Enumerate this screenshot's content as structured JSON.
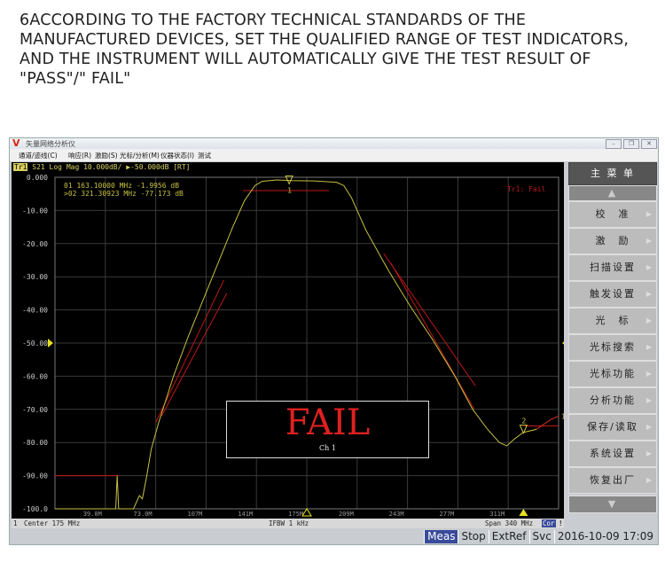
{
  "caption": "6ACCORDING TO THE FACTORY TECHNICAL STANDARDS OF THE MANUFACTURED DEVICES, SET THE QUALIFIED RANGE OF TEST INDICATORS, AND THE INSTRUMENT WILL AUTOMATICALLY GIVE THE TEST RESULT OF \"PASS\"/\" FAIL\"",
  "window": {
    "title": "矢量网络分析仪",
    "logo": "V"
  },
  "menu": [
    "通道/迹线(C)",
    "响应(R)",
    "激励(S)",
    "光标/分析(M)",
    "仪器状态(I)",
    "测试"
  ],
  "trace_header": {
    "tr": "Tr1",
    "text": "S21 Log Mag 10.000dB/ ▶-50.000dB [RT]"
  },
  "markers": [
    {
      "label": "01",
      "text": "163.10000 MHz -1.9956 dB",
      "freq": 163.1,
      "db": -1.9956
    },
    {
      "label": ">02",
      "text": "321.30923 MHz -77.173 dB",
      "freq": 321.30923,
      "db": -77.173
    }
  ],
  "limit_status": "Tr1: Fail",
  "y_ticks": [
    "0.000",
    "-10.00",
    "-20.00",
    "-30.00",
    "-40.00",
    "-50.00",
    "-60.00",
    "-70.00",
    "-80.00",
    "-90.00",
    "-100.0"
  ],
  "x_ticks": [
    "39.0M",
    "73.0M",
    "107M",
    "141M",
    "175M",
    "209M",
    "243M",
    "277M",
    "311M"
  ],
  "result": {
    "text": "FAIL",
    "channel": "Ch 1"
  },
  "status": {
    "channel": "1",
    "center": "Center 175 MHz",
    "ifbw": "IFBW 1 kHz",
    "span": "Span 340 MHz",
    "cor": "Cor",
    "warn": "!"
  },
  "bottom": [
    "Meas",
    "Stop",
    "ExtRef",
    "Svc",
    "2016-10-09 17:09"
  ],
  "side_menu": {
    "title": "主 菜 单",
    "items": [
      "校　准",
      "激　励",
      "扫描设置",
      "触发设置",
      "光　标",
      "光标搜索",
      "光标功能",
      "分析功能",
      "保存/读取",
      "系统设置",
      "恢复出厂"
    ]
  },
  "colors": {
    "trace": "#c8c040",
    "limit": "#c01818",
    "fail": "#e02020",
    "meas": "#3a4a9a"
  },
  "trace": [
    [
      5,
      -100
    ],
    [
      46,
      -100
    ],
    [
      47,
      -90
    ],
    [
      48,
      -100
    ],
    [
      58,
      -100
    ],
    [
      62,
      -96
    ],
    [
      64,
      -97
    ],
    [
      67,
      -90
    ],
    [
      70,
      -82
    ],
    [
      75,
      -74
    ],
    [
      85,
      -60
    ],
    [
      95,
      -48
    ],
    [
      105,
      -37
    ],
    [
      115,
      -26
    ],
    [
      125,
      -15
    ],
    [
      133,
      -7
    ],
    [
      140,
      -2.5
    ],
    [
      145,
      -1.2
    ],
    [
      155,
      -0.8
    ],
    [
      165,
      -1.0
    ],
    [
      180,
      -1.1
    ],
    [
      195,
      -1.5
    ],
    [
      200,
      -2.5
    ],
    [
      205,
      -6
    ],
    [
      215,
      -16
    ],
    [
      230,
      -28
    ],
    [
      245,
      -39
    ],
    [
      260,
      -49
    ],
    [
      275,
      -60
    ],
    [
      287,
      -70
    ],
    [
      297,
      -76
    ],
    [
      305,
      -80
    ],
    [
      310,
      -81
    ],
    [
      315,
      -79
    ],
    [
      321,
      -77
    ],
    [
      330,
      -76
    ],
    [
      340,
      -73
    ],
    [
      345,
      -72
    ]
  ],
  "limits": [
    [
      [
        5,
        -90
      ],
      [
        48,
        -90
      ]
    ],
    [
      [
        132,
        -4
      ],
      [
        190,
        -4
      ]
    ],
    [
      [
        73,
        -74
      ],
      [
        119,
        -31
      ]
    ],
    [
      [
        77,
        -72
      ],
      [
        121,
        -35
      ]
    ],
    [
      [
        227,
        -23
      ],
      [
        289,
        -63
      ]
    ],
    [
      [
        232,
        -26
      ],
      [
        288,
        -70
      ]
    ],
    [
      [
        322,
        -75
      ],
      [
        345,
        -75
      ]
    ]
  ]
}
